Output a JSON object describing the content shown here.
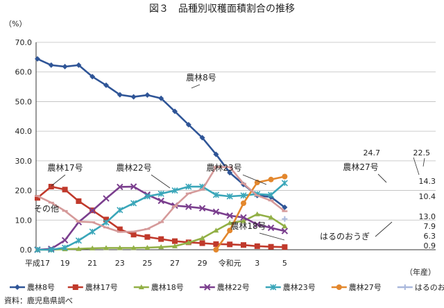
{
  "chart_data": {
    "type": "line",
    "title": "図３　品種別収穫面積割合の推移",
    "ylabel": "（%）",
    "xlabel": "（年産）",
    "ylim": [
      0,
      70
    ],
    "yticks": [
      "0.0",
      "10.0",
      "20.0",
      "30.0",
      "40.0",
      "50.0",
      "60.0",
      "70.0"
    ],
    "x_tick_labels": [
      "平成17",
      "19",
      "21",
      "23",
      "25",
      "27",
      "29",
      "令和元",
      "3",
      "5"
    ],
    "categories": [
      "平成17",
      "18",
      "19",
      "20",
      "21",
      "22",
      "23",
      "24",
      "25",
      "26",
      "27",
      "28",
      "29",
      "30",
      "令和元",
      "2",
      "3",
      "4",
      "5"
    ],
    "grid": true,
    "legend_position": "bottom",
    "series": [
      {
        "name": "農林8号",
        "color": "#2f5597",
        "marker": "diamond",
        "values": [
          64.4,
          62.3,
          61.8,
          62.3,
          58.4,
          55.5,
          52.3,
          51.6,
          52.2,
          51.1,
          46.7,
          42.2,
          37.8,
          32.2,
          26.0,
          22.0,
          18.3,
          17.8,
          14.3
        ]
      },
      {
        "name": "農林17号",
        "color": "#c0392b",
        "marker": "square",
        "values": [
          17.5,
          21.3,
          20.3,
          16.4,
          13.3,
          10.2,
          6.9,
          5.1,
          4.3,
          3.6,
          2.9,
          2.5,
          2.2,
          1.9,
          1.8,
          1.6,
          1.2,
          1.0,
          0.9
        ]
      },
      {
        "name": "農林18号",
        "color": "#92b046",
        "marker": "triangle",
        "values": [
          0,
          0,
          0.2,
          0.3,
          0.5,
          0.6,
          0.6,
          0.6,
          0.7,
          0.9,
          1.2,
          2.4,
          3.9,
          6.5,
          9.0,
          9.7,
          12.0,
          10.9,
          7.9
        ]
      },
      {
        "name": "農林22号",
        "color": "#7b3f8e",
        "marker": "cross",
        "values": [
          0,
          0.3,
          3.2,
          9.3,
          13.2,
          17.3,
          21.2,
          21.3,
          18.6,
          16.5,
          14.9,
          14.5,
          14.0,
          12.8,
          11.5,
          10.9,
          8.5,
          7.4,
          6.3
        ]
      },
      {
        "name": "農林23号",
        "color": "#3aa6b9",
        "marker": "x",
        "values": [
          0,
          0,
          0.7,
          3.1,
          6.1,
          9.2,
          13.4,
          15.7,
          18.0,
          18.9,
          20.0,
          21.3,
          21.3,
          18.5,
          18.0,
          18.3,
          18.8,
          18.5,
          22.5
        ]
      },
      {
        "name": "農林27号",
        "color": "#e3872d",
        "marker": "circle",
        "values": [
          null,
          null,
          null,
          null,
          null,
          null,
          null,
          null,
          null,
          null,
          null,
          null,
          null,
          0,
          6.5,
          15.7,
          22.7,
          23.7,
          24.7
        ]
      },
      {
        "name": "はるのおうぎ",
        "color": "#a9b8dc",
        "marker": "plus",
        "values": [
          null,
          null,
          null,
          null,
          null,
          null,
          null,
          null,
          null,
          null,
          null,
          null,
          null,
          null,
          null,
          null,
          null,
          null,
          10.4
        ]
      },
      {
        "name": "その他",
        "color": "#d59a9a",
        "marker": "dash",
        "values": [
          18.1,
          15.9,
          13.1,
          9.5,
          9.3,
          7.5,
          6.0,
          6.1,
          7.0,
          9.3,
          14.7,
          19.0,
          20.3,
          27.9,
          27.9,
          22.3,
          18.3,
          16.6,
          13.0
        ]
      }
    ],
    "callouts": [
      "農林8号",
      "農林17号",
      "農林22号",
      "農林23号",
      "農林27号",
      "農林18号",
      "その他",
      "はるのおうぎ"
    ],
    "end_labels": [
      "24.7",
      "22.5",
      "14.3",
      "13.0",
      "10.4",
      "7.9",
      "6.3",
      "0.9"
    ]
  },
  "source": "資料：鹿児島県調べ"
}
